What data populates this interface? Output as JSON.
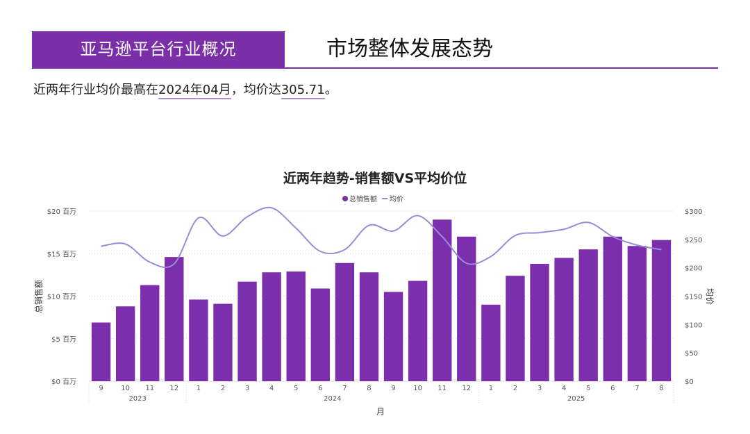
{
  "header": {
    "section_tab": "亚马逊平台行业概况",
    "title": "市场整体发展态势"
  },
  "summary": {
    "prefix": "近两年行业均价最高在",
    "peak_month": "2024年04月",
    "middle": "，均价达",
    "peak_value": "305.71",
    "suffix": "。"
  },
  "colors": {
    "accent": "#7a2ea8",
    "bar": "#7b2fad",
    "line": "#9b8ad6",
    "grid": "#d9d9d9"
  },
  "chart_data": {
    "type": "bar",
    "title": "近两年趋势-销售额VS平均价位",
    "legend": [
      "总销售额",
      "均价"
    ],
    "xlabel": "月",
    "ylabel": "总销售额",
    "y2label": "均价",
    "year_groups": [
      {
        "label": "2023",
        "count": 4
      },
      {
        "label": "2024",
        "count": 12
      },
      {
        "label": "2025",
        "count": 8
      }
    ],
    "categories": [
      "9",
      "10",
      "11",
      "12",
      "1",
      "2",
      "3",
      "4",
      "5",
      "6",
      "7",
      "8",
      "9",
      "10",
      "11",
      "12",
      "1",
      "2",
      "3",
      "4",
      "5",
      "6",
      "7",
      "8"
    ],
    "series": [
      {
        "name": "总销售额",
        "type": "bar",
        "axis": "left",
        "values": [
          6.9,
          8.8,
          11.3,
          14.6,
          9.6,
          9.1,
          11.7,
          12.8,
          12.9,
          10.9,
          13.9,
          12.8,
          10.5,
          11.8,
          19.0,
          17.0,
          9.0,
          12.4,
          13.8,
          14.5,
          15.5,
          17.0,
          15.9,
          16.6
        ]
      },
      {
        "name": "均价",
        "type": "line",
        "axis": "right",
        "values": [
          238,
          242,
          210,
          207,
          288,
          256,
          290,
          305.71,
          270,
          229,
          232,
          275,
          265,
          292,
          255,
          208,
          220,
          257,
          262,
          268,
          280,
          255,
          240,
          232
        ]
      }
    ],
    "ylim": [
      0,
      20
    ],
    "yticks": [
      "$0 百万",
      "$5 百万",
      "$10 百万",
      "$15 百万",
      "$20 百万"
    ],
    "y2lim": [
      0,
      300
    ],
    "y2ticks": [
      "$0",
      "$50",
      "$100",
      "$150",
      "$200",
      "$250",
      "$300"
    ],
    "grid": true,
    "legend_position": "top-center"
  }
}
